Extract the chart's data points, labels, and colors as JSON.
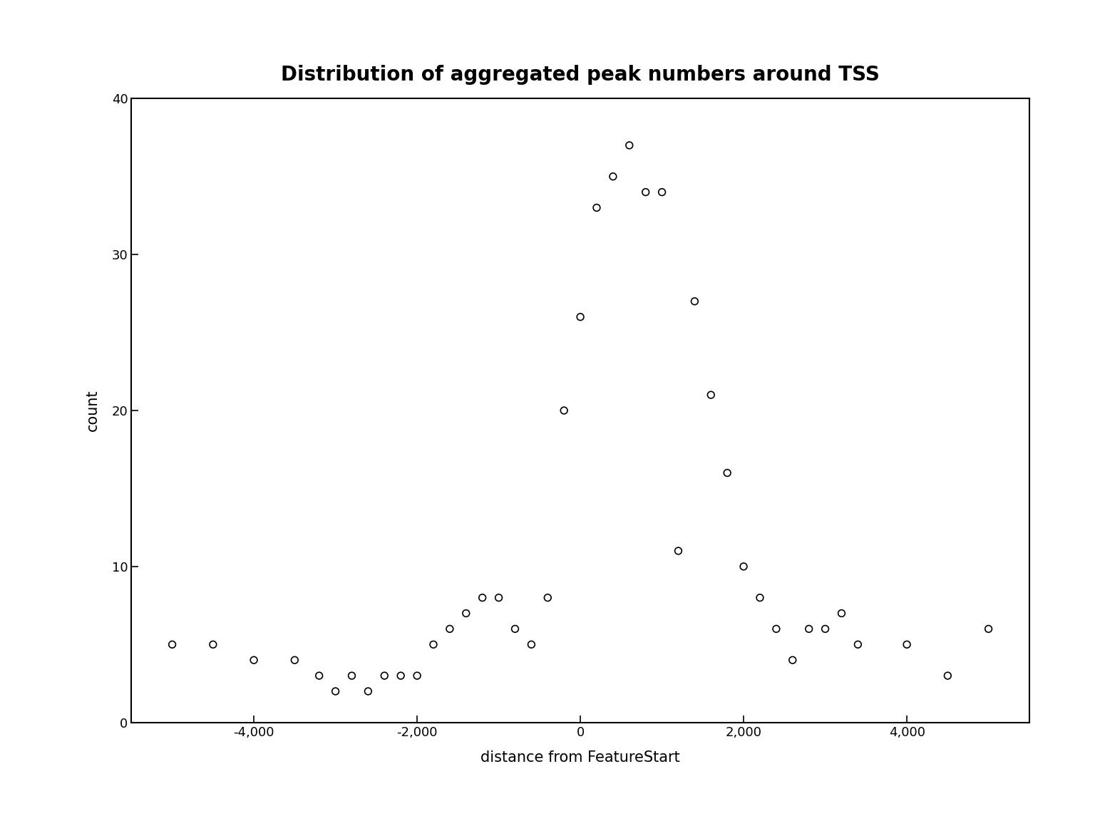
{
  "title": "Distribution of aggregated peak numbers around TSS",
  "xlabel": "distance from FeatureStart",
  "ylabel": "count",
  "xlim": [
    -5500,
    5500
  ],
  "ylim": [
    0,
    40
  ],
  "xticks": [
    -4000,
    -2000,
    0,
    2000,
    4000
  ],
  "yticks": [
    0,
    10,
    20,
    30,
    40
  ],
  "x": [
    -5000,
    -4500,
    -4000,
    -3500,
    -3200,
    -3000,
    -2800,
    -2600,
    -2400,
    -2200,
    -2000,
    -1800,
    -1600,
    -1400,
    -1200,
    -1000,
    -800,
    -600,
    -400,
    -200,
    0,
    200,
    400,
    600,
    800,
    1000,
    1200,
    1400,
    1600,
    1800,
    2000,
    2200,
    2400,
    2600,
    2800,
    3000,
    3200,
    3400,
    4000,
    4500,
    5000
  ],
  "y": [
    5,
    5,
    4,
    4,
    3,
    2,
    3,
    2,
    3,
    3,
    3,
    5,
    6,
    7,
    8,
    8,
    6,
    5,
    8,
    20,
    26,
    33,
    35,
    37,
    34,
    34,
    11,
    27,
    21,
    16,
    10,
    8,
    6,
    4,
    6,
    6,
    7,
    5,
    5,
    3,
    6
  ],
  "marker": "o",
  "marker_size": 7,
  "marker_facecolor": "none",
  "marker_edgecolor": "black",
  "marker_linewidth": 1.2,
  "background_color": "white",
  "title_fontsize": 20,
  "label_fontsize": 15,
  "tick_fontsize": 13,
  "title_fontweight": "bold"
}
